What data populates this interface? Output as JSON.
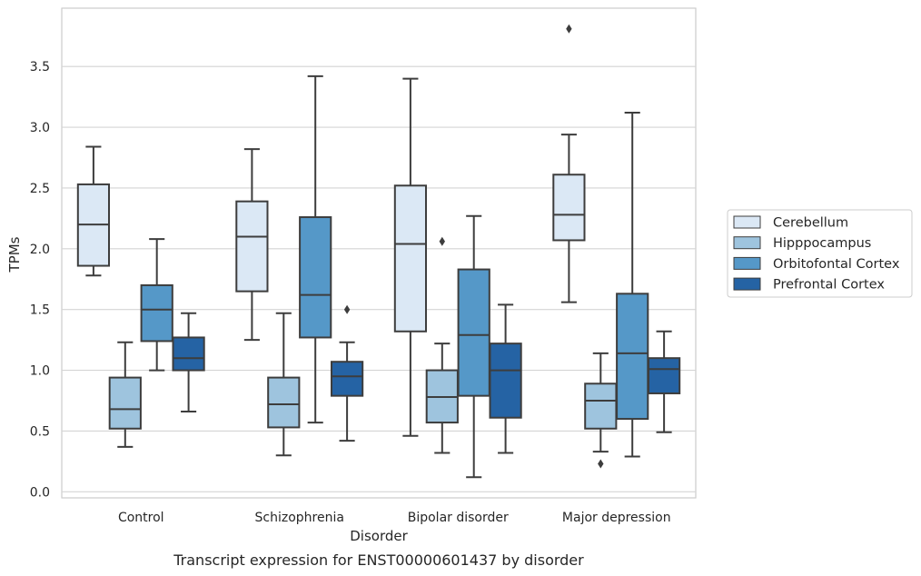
{
  "chart_data": {
    "type": "box",
    "xlabel": "Disorder",
    "ylabel": "TPMs",
    "caption": "Transcript expression for ENST00000601437 by disorder",
    "ylim": [
      -0.05,
      3.98
    ],
    "yticks": [
      "0.0",
      "0.5",
      "1.0",
      "1.5",
      "2.0",
      "2.5",
      "3.0",
      "3.5"
    ],
    "ytick_values": [
      0.0,
      0.5,
      1.0,
      1.5,
      2.0,
      2.5,
      3.0,
      3.5
    ],
    "grid": true,
    "legend_position": "right",
    "categories": [
      "Control",
      "Schizophrenia",
      "Bipolar disorder",
      "Major depression"
    ],
    "series": [
      {
        "name": "Cerebellum",
        "color": "#dbe8f5",
        "boxes": [
          {
            "whislo": 1.78,
            "q1": 1.86,
            "med": 2.2,
            "q3": 2.53,
            "whishi": 2.84,
            "fliers": []
          },
          {
            "whislo": 1.25,
            "q1": 1.65,
            "med": 2.1,
            "q3": 2.39,
            "whishi": 2.82,
            "fliers": []
          },
          {
            "whislo": 0.46,
            "q1": 1.32,
            "med": 2.04,
            "q3": 2.52,
            "whishi": 3.4,
            "fliers": []
          },
          {
            "whislo": 1.56,
            "q1": 2.07,
            "med": 2.28,
            "q3": 2.61,
            "whishi": 2.94,
            "fliers": [
              3.81
            ]
          }
        ]
      },
      {
        "name": "Hipppocampus",
        "color": "#9ec4de",
        "boxes": [
          {
            "whislo": 0.37,
            "q1": 0.52,
            "med": 0.68,
            "q3": 0.94,
            "whishi": 1.23,
            "fliers": []
          },
          {
            "whislo": 0.3,
            "q1": 0.53,
            "med": 0.72,
            "q3": 0.94,
            "whishi": 1.47,
            "fliers": []
          },
          {
            "whislo": 0.32,
            "q1": 0.57,
            "med": 0.78,
            "q3": 1.0,
            "whishi": 1.22,
            "fliers": [
              2.06
            ]
          },
          {
            "whislo": 0.33,
            "q1": 0.52,
            "med": 0.75,
            "q3": 0.89,
            "whishi": 1.14,
            "fliers": [
              0.23
            ]
          }
        ]
      },
      {
        "name": "Orbitofontal Cortex",
        "color": "#5598c8",
        "boxes": [
          {
            "whislo": 1.0,
            "q1": 1.24,
            "med": 1.5,
            "q3": 1.7,
            "whishi": 2.08,
            "fliers": []
          },
          {
            "whislo": 0.57,
            "q1": 1.27,
            "med": 1.62,
            "q3": 2.26,
            "whishi": 3.42,
            "fliers": []
          },
          {
            "whislo": 0.12,
            "q1": 0.79,
            "med": 1.29,
            "q3": 1.83,
            "whishi": 2.27,
            "fliers": []
          },
          {
            "whislo": 0.29,
            "q1": 0.6,
            "med": 1.14,
            "q3": 1.63,
            "whishi": 3.12,
            "fliers": []
          }
        ]
      },
      {
        "name": "Prefrontal Cortex",
        "color": "#2563a4",
        "boxes": [
          {
            "whislo": 0.66,
            "q1": 1.0,
            "med": 1.1,
            "q3": 1.27,
            "whishi": 1.47,
            "fliers": []
          },
          {
            "whislo": 0.42,
            "q1": 0.79,
            "med": 0.95,
            "q3": 1.07,
            "whishi": 1.23,
            "fliers": [
              1.5
            ]
          },
          {
            "whislo": 0.32,
            "q1": 0.61,
            "med": 1.0,
            "q3": 1.22,
            "whishi": 1.54,
            "fliers": []
          },
          {
            "whislo": 0.49,
            "q1": 0.81,
            "med": 1.01,
            "q3": 1.1,
            "whishi": 1.32,
            "fliers": []
          }
        ]
      }
    ]
  }
}
